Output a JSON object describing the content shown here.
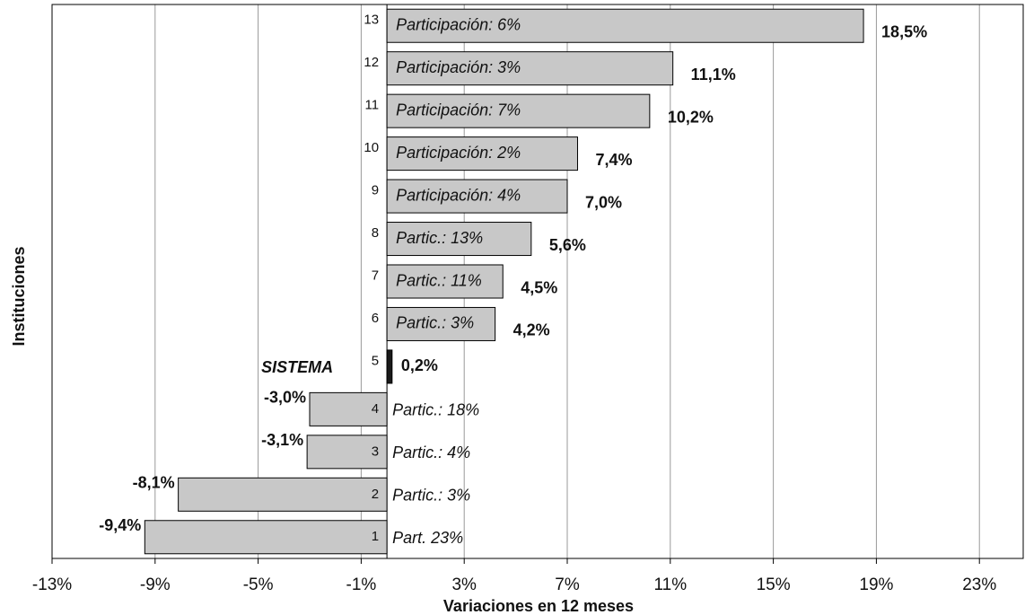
{
  "chart_data": {
    "type": "hbar",
    "xlabel": "Variaciones en 12 meses",
    "ylabel": "Instituciones",
    "categories": [
      "1",
      "2",
      "3",
      "4",
      "5",
      "6",
      "7",
      "8",
      "9",
      "10",
      "11",
      "12",
      "13"
    ],
    "values": [
      -9.4,
      -8.1,
      -3.1,
      -3.0,
      0.2,
      4.2,
      4.5,
      5.6,
      7.0,
      7.4,
      10.2,
      11.1,
      18.5
    ],
    "value_labels": [
      "-9,4%",
      "-8,1%",
      "-3,1%",
      "-3,0%",
      "0,2%",
      "4,2%",
      "4,5%",
      "5,6%",
      "7,0%",
      "7,4%",
      "10,2%",
      "11,1%",
      "18,5%"
    ],
    "annotations": [
      "Part. 23%",
      "Partic.: 3%",
      "Partic.: 4%",
      "Partic.: 18%",
      "SISTEMA",
      "Partic.: 3%",
      "Partic.: 11%",
      "Partic.: 13%",
      "Participación: 4%",
      "Participación: 2%",
      "Participación: 7%",
      "Participación: 3%",
      "Participación: 6%"
    ],
    "colors": [
      "#c8c8c8",
      "#c8c8c8",
      "#c8c8c8",
      "#c8c8c8",
      "#1a1a1a",
      "#c8c8c8",
      "#c8c8c8",
      "#c8c8c8",
      "#c8c8c8",
      "#c8c8c8",
      "#c8c8c8",
      "#c8c8c8",
      "#c8c8c8"
    ],
    "xlim": [
      -13,
      24.7
    ],
    "xticks": [
      {
        "value": -13,
        "label": "-13%"
      },
      {
        "value": -9,
        "label": "-9%"
      },
      {
        "value": -5,
        "label": "-5%"
      },
      {
        "value": -1,
        "label": "-1%"
      },
      {
        "value": 3,
        "label": "3%"
      },
      {
        "value": 7,
        "label": "7%"
      },
      {
        "value": 11,
        "label": "11%"
      },
      {
        "value": 15,
        "label": "15%"
      },
      {
        "value": 19,
        "label": "19%"
      },
      {
        "value": 23,
        "label": "23%"
      }
    ],
    "grid": true
  }
}
